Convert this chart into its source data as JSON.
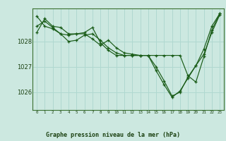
{
  "background_color": "#cce8e0",
  "plot_bg_color": "#cce8e0",
  "grid_color": "#b0d8d0",
  "line_color": "#1a5c18",
  "title": "Graphe pression niveau de la mer (hPa)",
  "xlim": [
    -0.5,
    23.5
  ],
  "ylim": [
    1025.3,
    1029.3
  ],
  "yticks": [
    1026,
    1027,
    1028
  ],
  "xticks": [
    0,
    1,
    2,
    3,
    4,
    5,
    6,
    7,
    8,
    9,
    10,
    11,
    12,
    13,
    14,
    15,
    16,
    17,
    18,
    19,
    20,
    21,
    22,
    23
  ],
  "series": [
    [
      1028.35,
      1028.9,
      1028.6,
      1028.55,
      1028.3,
      1028.3,
      1028.3,
      1028.1,
      1027.85,
      1028.05,
      1027.75,
      1027.55,
      1027.5,
      1027.45,
      1027.45,
      1027.45,
      1027.45,
      1027.45,
      1027.45,
      1026.65,
      1026.4,
      1027.4,
      1028.45,
      1029.1
    ],
    [
      1029.0,
      1028.6,
      1028.5,
      1028.3,
      1028.25,
      1028.3,
      1028.35,
      1028.55,
      1027.95,
      1027.65,
      1027.45,
      1027.45,
      1027.45,
      1027.45,
      1027.45,
      1026.85,
      1026.3,
      1025.8,
      1026.05,
      1026.55,
      1027.05,
      1027.7,
      1028.6,
      1029.1
    ],
    [
      1028.6,
      1028.8,
      1028.55,
      1028.3,
      1028.0,
      1028.05,
      1028.25,
      1028.3,
      1028.05,
      1027.75,
      1027.55,
      1027.45,
      1027.45,
      1027.45,
      1027.45,
      1027.0,
      1026.45,
      1025.85,
      1026.0,
      1026.6,
      1027.05,
      1027.5,
      1028.35,
      1029.05
    ]
  ]
}
